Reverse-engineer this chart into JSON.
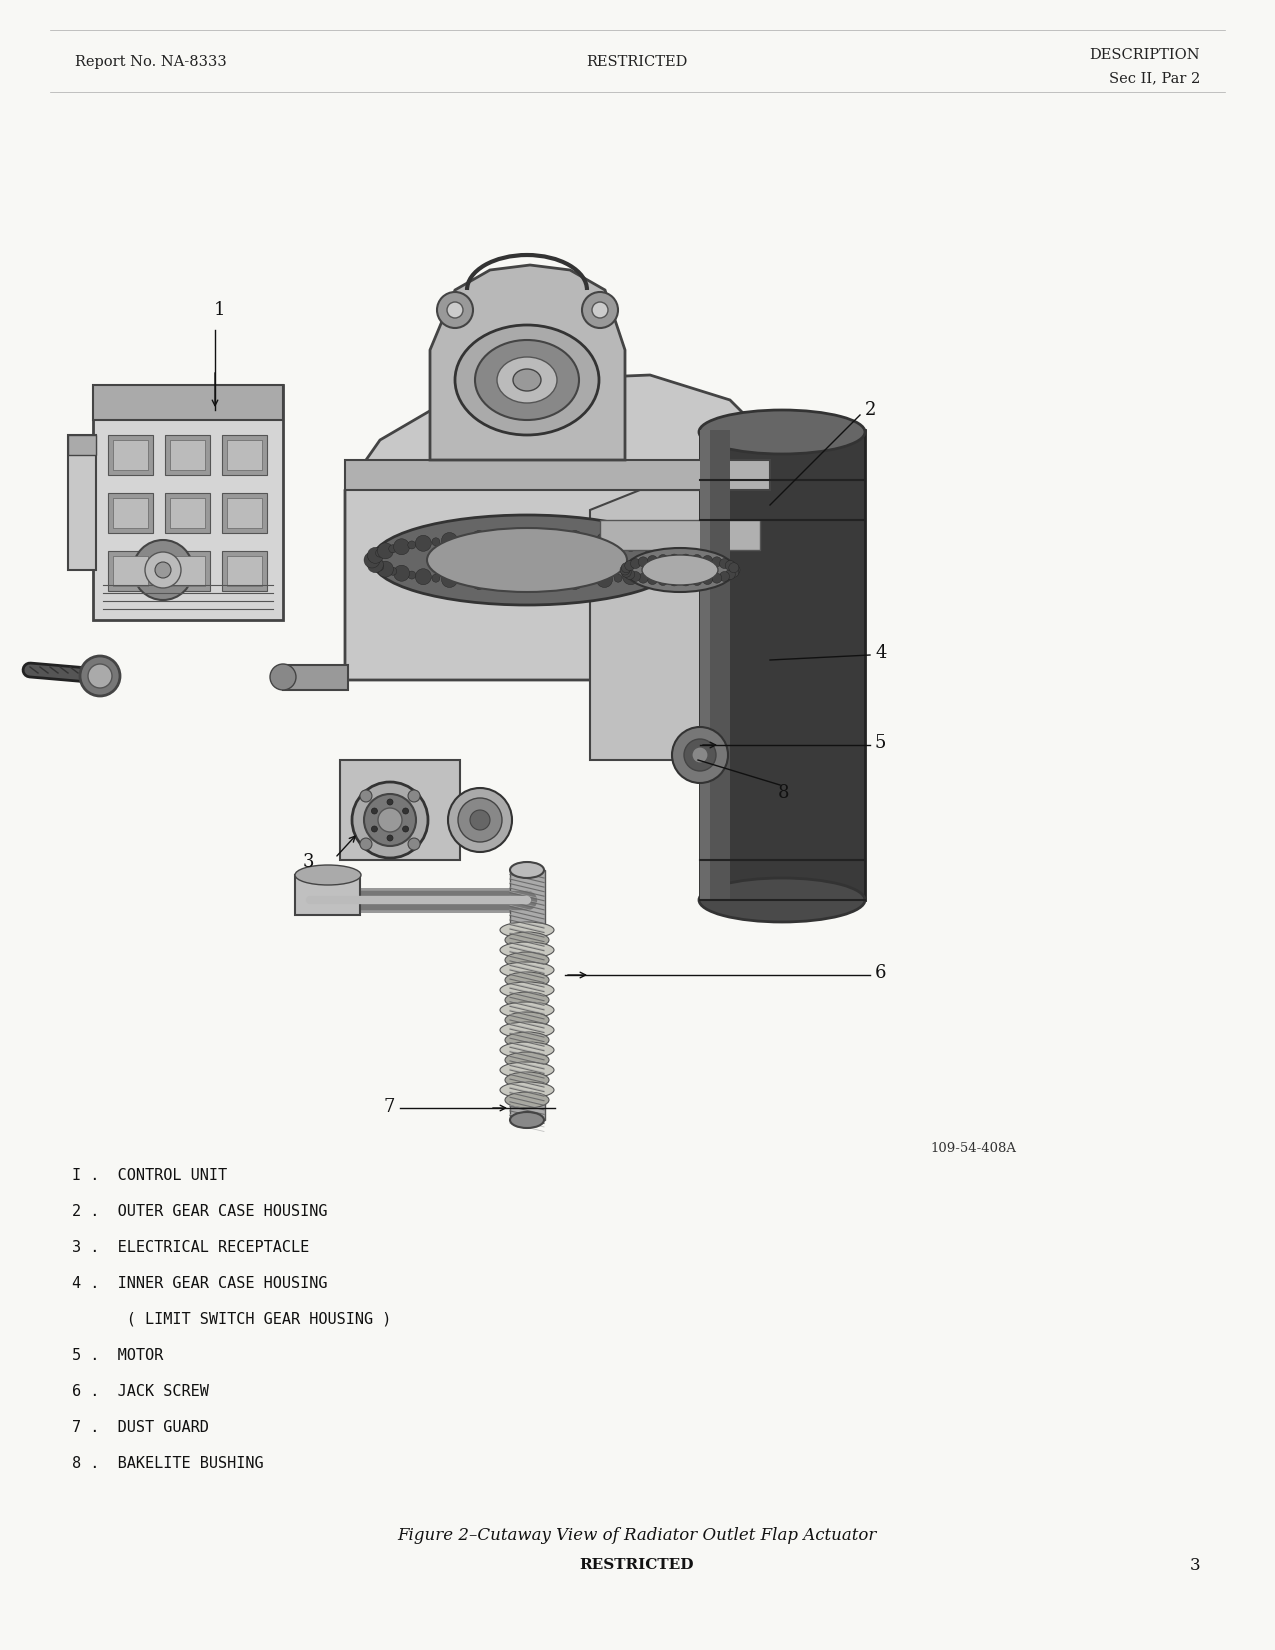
{
  "background_color": "#f8f8f5",
  "header": {
    "left_text": "Report No. NA-8333",
    "center_text": "RESTRICTED",
    "right_text_line1": "DESCRIPTION",
    "right_text_line2": "Sec II, Par 2"
  },
  "footer": {
    "center_caption": "Figure 2–Cutaway View of Radiator Outlet Flap Actuator",
    "center_restricted": "RESTRICTED",
    "right_page": "3"
  },
  "legend_items": [
    "I .  CONTROL UNIT",
    "2 .  OUTER GEAR CASE HOUSING",
    "3 .  ELECTRICAL RECEPTACLE",
    "4 .  INNER GEAR CASE HOUSING",
    "      ( LIMIT SWITCH GEAR HOUSING )",
    "5 .  MOTOR",
    "6 .  JACK SCREW",
    "7 .  DUST GUARD",
    "8 .  BAKELITE BUSHING"
  ],
  "ref_number": "109-54-408A"
}
